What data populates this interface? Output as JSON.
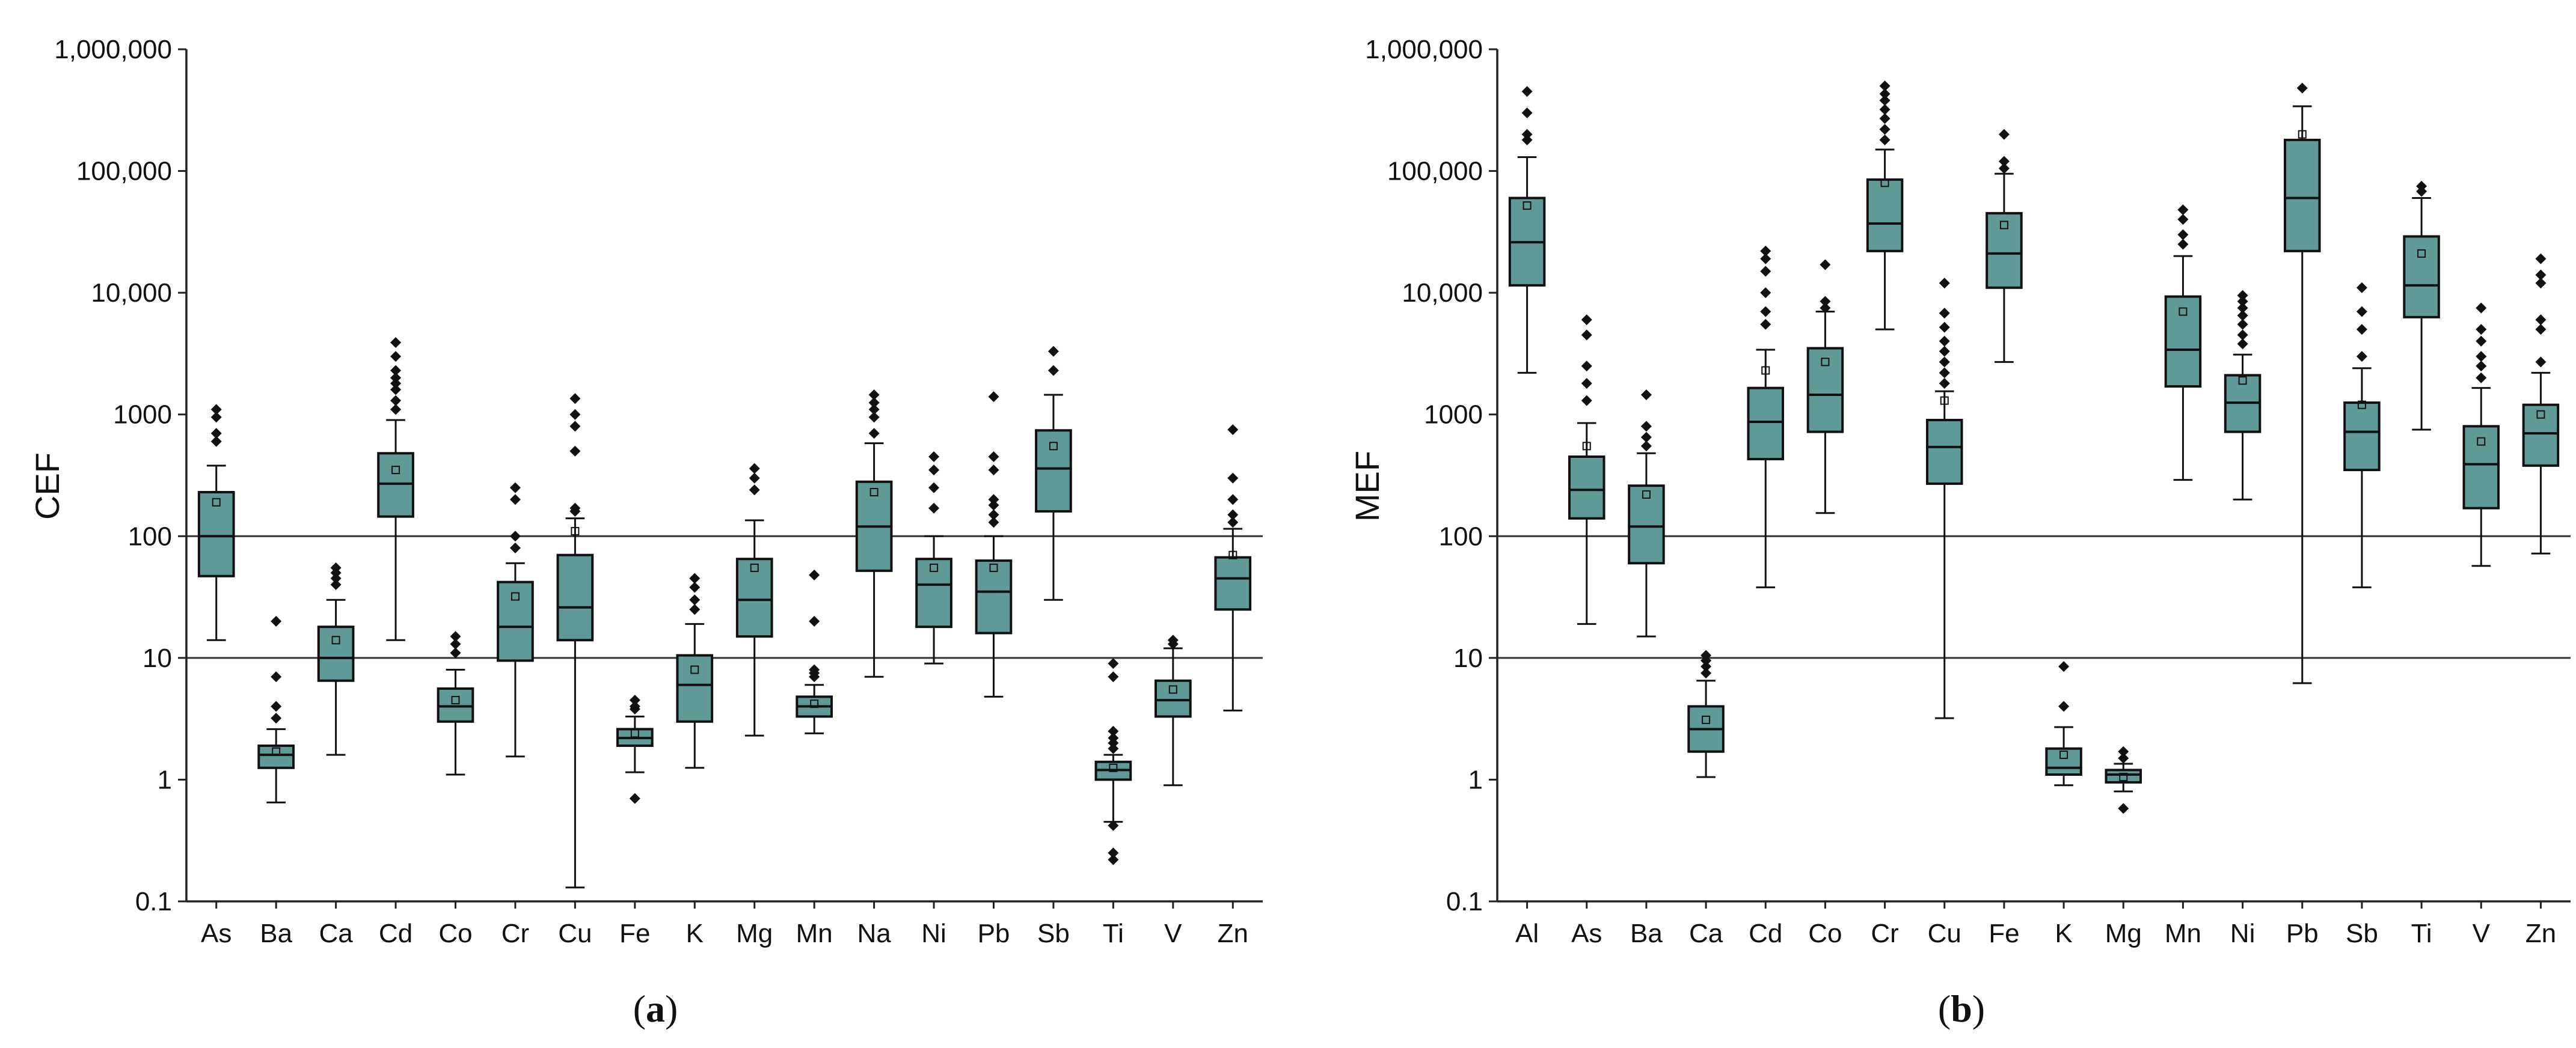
{
  "box_fill": "#5f9a96",
  "ref_lines": [
    10,
    100
  ],
  "chart_data": [
    {
      "panel": "a",
      "panel_label": {
        "open": "(",
        "letter": "a",
        "close": ")"
      },
      "type": "box",
      "ylabel": "CEF",
      "yscale": "log",
      "ylim": [
        0.1,
        1000000
      ],
      "yticks": [
        {
          "v": 0.1,
          "label": "0.1"
        },
        {
          "v": 1,
          "label": "1"
        },
        {
          "v": 10,
          "label": "10"
        },
        {
          "v": 100,
          "label": "100"
        },
        {
          "v": 1000,
          "label": "1000"
        },
        {
          "v": 10000,
          "label": "10,000"
        },
        {
          "v": 100000,
          "label": "100,000"
        },
        {
          "v": 1000000,
          "label": "1,000,000"
        }
      ],
      "categories": [
        "As",
        "Ba",
        "Ca",
        "Cd",
        "Co",
        "Cr",
        "Cu",
        "Fe",
        "K",
        "Mg",
        "Mn",
        "Na",
        "Ni",
        "Pb",
        "Sb",
        "Ti",
        "V",
        "Zn"
      ],
      "boxes": [
        {
          "cat": "As",
          "min": 14,
          "q1": 47,
          "median": 100,
          "q3": 230,
          "max": 380,
          "mean": 190,
          "outliers": [
            600,
            700,
            950,
            1100
          ]
        },
        {
          "cat": "Ba",
          "min": 0.65,
          "q1": 1.25,
          "median": 1.6,
          "q3": 1.9,
          "max": 2.6,
          "mean": 1.7,
          "outliers": [
            3.2,
            4,
            7,
            20
          ]
        },
        {
          "cat": "Ca",
          "min": 1.6,
          "q1": 6.5,
          "median": 10,
          "q3": 18,
          "max": 30,
          "mean": 14,
          "outliers": [
            40,
            45,
            50,
            55
          ]
        },
        {
          "cat": "Cd",
          "min": 14,
          "q1": 145,
          "median": 270,
          "q3": 480,
          "max": 900,
          "mean": 350,
          "outliers": [
            1100,
            1300,
            1600,
            1800,
            2000,
            2300,
            3000,
            3900
          ]
        },
        {
          "cat": "Co",
          "min": 1.1,
          "q1": 3,
          "median": 4,
          "q3": 5.6,
          "max": 8,
          "mean": 4.5,
          "outliers": [
            11,
            13,
            15
          ]
        },
        {
          "cat": "Cr",
          "min": 1.55,
          "q1": 9.5,
          "median": 18,
          "q3": 42,
          "max": 60,
          "mean": 32,
          "outliers": [
            80,
            100,
            200,
            250
          ]
        },
        {
          "cat": "Cu",
          "min": 0.13,
          "q1": 14,
          "median": 26,
          "q3": 70,
          "max": 140,
          "mean": 110,
          "outliers": [
            160,
            170,
            500,
            800,
            1000,
            1350
          ]
        },
        {
          "cat": "Fe",
          "min": 1.15,
          "q1": 1.9,
          "median": 2.2,
          "q3": 2.6,
          "max": 3.3,
          "mean": 2.4,
          "outliers": [
            0.7,
            3.8,
            4,
            4.5
          ]
        },
        {
          "cat": "K",
          "min": 1.25,
          "q1": 3,
          "median": 6,
          "q3": 10.5,
          "max": 19,
          "mean": 8,
          "outliers": [
            25,
            30,
            38,
            45
          ]
        },
        {
          "cat": "Mg",
          "min": 2.3,
          "q1": 15,
          "median": 30,
          "q3": 65,
          "max": 135,
          "mean": 55,
          "outliers": [
            240,
            300,
            360
          ]
        },
        {
          "cat": "Mn",
          "min": 2.4,
          "q1": 3.3,
          "median": 4,
          "q3": 4.8,
          "max": 6,
          "mean": 4.2,
          "outliers": [
            7,
            7.5,
            8,
            20,
            48
          ]
        },
        {
          "cat": "Na",
          "min": 7,
          "q1": 52,
          "median": 120,
          "q3": 280,
          "max": 580,
          "mean": 230,
          "outliers": [
            700,
            950,
            1100,
            1250,
            1450
          ]
        },
        {
          "cat": "Ni",
          "min": 9,
          "q1": 18,
          "median": 40,
          "q3": 65,
          "max": 100,
          "mean": 55,
          "outliers": [
            170,
            250,
            350,
            450
          ]
        },
        {
          "cat": "Pb",
          "min": 4.8,
          "q1": 16,
          "median": 35,
          "q3": 63,
          "max": 100,
          "mean": 55,
          "outliers": [
            130,
            150,
            180,
            200,
            350,
            450,
            1400
          ]
        },
        {
          "cat": "Sb",
          "min": 30,
          "q1": 160,
          "median": 360,
          "q3": 740,
          "max": 1450,
          "mean": 550,
          "outliers": [
            2300,
            3300
          ]
        },
        {
          "cat": "Ti",
          "min": 0.45,
          "q1": 1.0,
          "median": 1.2,
          "q3": 1.4,
          "max": 1.6,
          "mean": 1.25,
          "outliers": [
            0.22,
            0.25,
            0.42,
            1.8,
            2,
            2.2,
            2.5,
            7,
            9
          ]
        },
        {
          "cat": "V",
          "min": 0.9,
          "q1": 3.3,
          "median": 4.5,
          "q3": 6.5,
          "max": 12,
          "mean": 5.5,
          "outliers": [
            13,
            14
          ]
        },
        {
          "cat": "Zn",
          "min": 3.7,
          "q1": 25,
          "median": 45,
          "q3": 67,
          "max": 115,
          "mean": 70,
          "outliers": [
            130,
            150,
            200,
            300,
            750
          ]
        }
      ]
    },
    {
      "panel": "b",
      "panel_label": {
        "open": "(",
        "letter": "b",
        "close": ")"
      },
      "type": "box",
      "ylabel": "MEF",
      "yscale": "log",
      "ylim": [
        0.1,
        1000000
      ],
      "yticks": [
        {
          "v": 0.1,
          "label": "0.1"
        },
        {
          "v": 1,
          "label": "1"
        },
        {
          "v": 10,
          "label": "10"
        },
        {
          "v": 100,
          "label": "100"
        },
        {
          "v": 1000,
          "label": "1000"
        },
        {
          "v": 10000,
          "label": "10,000"
        },
        {
          "v": 100000,
          "label": "100,000"
        },
        {
          "v": 1000000,
          "label": "1,000,000"
        }
      ],
      "categories": [
        "Al",
        "As",
        "Ba",
        "Ca",
        "Cd",
        "Co",
        "Cr",
        "Cu",
        "Fe",
        "K",
        "Mg",
        "Mn",
        "Ni",
        "Pb",
        "Sb",
        "Ti",
        "V",
        "Zn"
      ],
      "boxes": [
        {
          "cat": "Al",
          "min": 2200,
          "q1": 11500,
          "median": 26000,
          "q3": 60000,
          "max": 130000,
          "mean": 52000,
          "outliers": [
            180000,
            200000,
            300000,
            450000
          ]
        },
        {
          "cat": "As",
          "min": 19,
          "q1": 140,
          "median": 240,
          "q3": 450,
          "max": 850,
          "mean": 550,
          "outliers": [
            1300,
            1800,
            2500,
            4500,
            6000
          ]
        },
        {
          "cat": "Ba",
          "min": 15,
          "q1": 60,
          "median": 120,
          "q3": 260,
          "max": 480,
          "mean": 220,
          "outliers": [
            550,
            650,
            800,
            1450
          ]
        },
        {
          "cat": "Ca",
          "min": 1.05,
          "q1": 1.7,
          "median": 2.6,
          "q3": 4,
          "max": 6.5,
          "mean": 3.1,
          "outliers": [
            7.5,
            8.5,
            9.5,
            10.5
          ]
        },
        {
          "cat": "Cd",
          "min": 38,
          "q1": 430,
          "median": 870,
          "q3": 1650,
          "max": 3400,
          "mean": 2300,
          "outliers": [
            5500,
            7000,
            10000,
            15000,
            19000,
            22000
          ]
        },
        {
          "cat": "Co",
          "min": 155,
          "q1": 720,
          "median": 1450,
          "q3": 3500,
          "max": 7000,
          "mean": 2700,
          "outliers": [
            7500,
            8500,
            17000
          ]
        },
        {
          "cat": "Cr",
          "min": 5000,
          "q1": 22000,
          "median": 37000,
          "q3": 85000,
          "max": 150000,
          "mean": 80000,
          "outliers": [
            180000,
            220000,
            270000,
            320000,
            380000,
            430000,
            500000
          ]
        },
        {
          "cat": "Cu",
          "min": 3.2,
          "q1": 270,
          "median": 540,
          "q3": 900,
          "max": 1550,
          "mean": 1300,
          "outliers": [
            1800,
            2200,
            2700,
            3300,
            4000,
            5200,
            6800,
            12000
          ]
        },
        {
          "cat": "Fe",
          "min": 2700,
          "q1": 11000,
          "median": 21000,
          "q3": 45000,
          "max": 95000,
          "mean": 36000,
          "outliers": [
            105000,
            120000,
            200000
          ]
        },
        {
          "cat": "K",
          "min": 0.9,
          "q1": 1.1,
          "median": 1.25,
          "q3": 1.8,
          "max": 2.7,
          "mean": 1.6,
          "outliers": [
            4,
            8.5
          ]
        },
        {
          "cat": "Mg",
          "min": 0.8,
          "q1": 0.95,
          "median": 1.1,
          "q3": 1.2,
          "max": 1.35,
          "mean": 1.05,
          "outliers": [
            0.58,
            1.5,
            1.7
          ]
        },
        {
          "cat": "Mn",
          "min": 290,
          "q1": 1700,
          "median": 3400,
          "q3": 9300,
          "max": 20000,
          "mean": 7000,
          "outliers": [
            25000,
            30000,
            40000,
            48000
          ]
        },
        {
          "cat": "Ni",
          "min": 200,
          "q1": 720,
          "median": 1250,
          "q3": 2100,
          "max": 3100,
          "mean": 1900,
          "outliers": [
            3800,
            4500,
            5500,
            6500,
            7500,
            8500,
            9500
          ]
        },
        {
          "cat": "Pb",
          "min": 6.2,
          "q1": 22000,
          "median": 60000,
          "q3": 180000,
          "max": 340000,
          "mean": 200000,
          "outliers": [
            480000
          ]
        },
        {
          "cat": "Sb",
          "min": 38,
          "q1": 350,
          "median": 720,
          "q3": 1250,
          "max": 2400,
          "mean": 1200,
          "outliers": [
            3000,
            5000,
            7000,
            11000
          ]
        },
        {
          "cat": "Ti",
          "min": 750,
          "q1": 6300,
          "median": 11500,
          "q3": 29000,
          "max": 60000,
          "mean": 21000,
          "outliers": [
            68000,
            75000
          ]
        },
        {
          "cat": "V",
          "min": 57,
          "q1": 170,
          "median": 390,
          "q3": 800,
          "max": 1650,
          "mean": 600,
          "outliers": [
            2000,
            2500,
            3000,
            4000,
            5000,
            7500
          ]
        },
        {
          "cat": "Zn",
          "min": 72,
          "q1": 380,
          "median": 700,
          "q3": 1200,
          "max": 2200,
          "mean": 1000,
          "outliers": [
            2700,
            5000,
            6000,
            12000,
            14000,
            19000
          ]
        }
      ]
    }
  ]
}
